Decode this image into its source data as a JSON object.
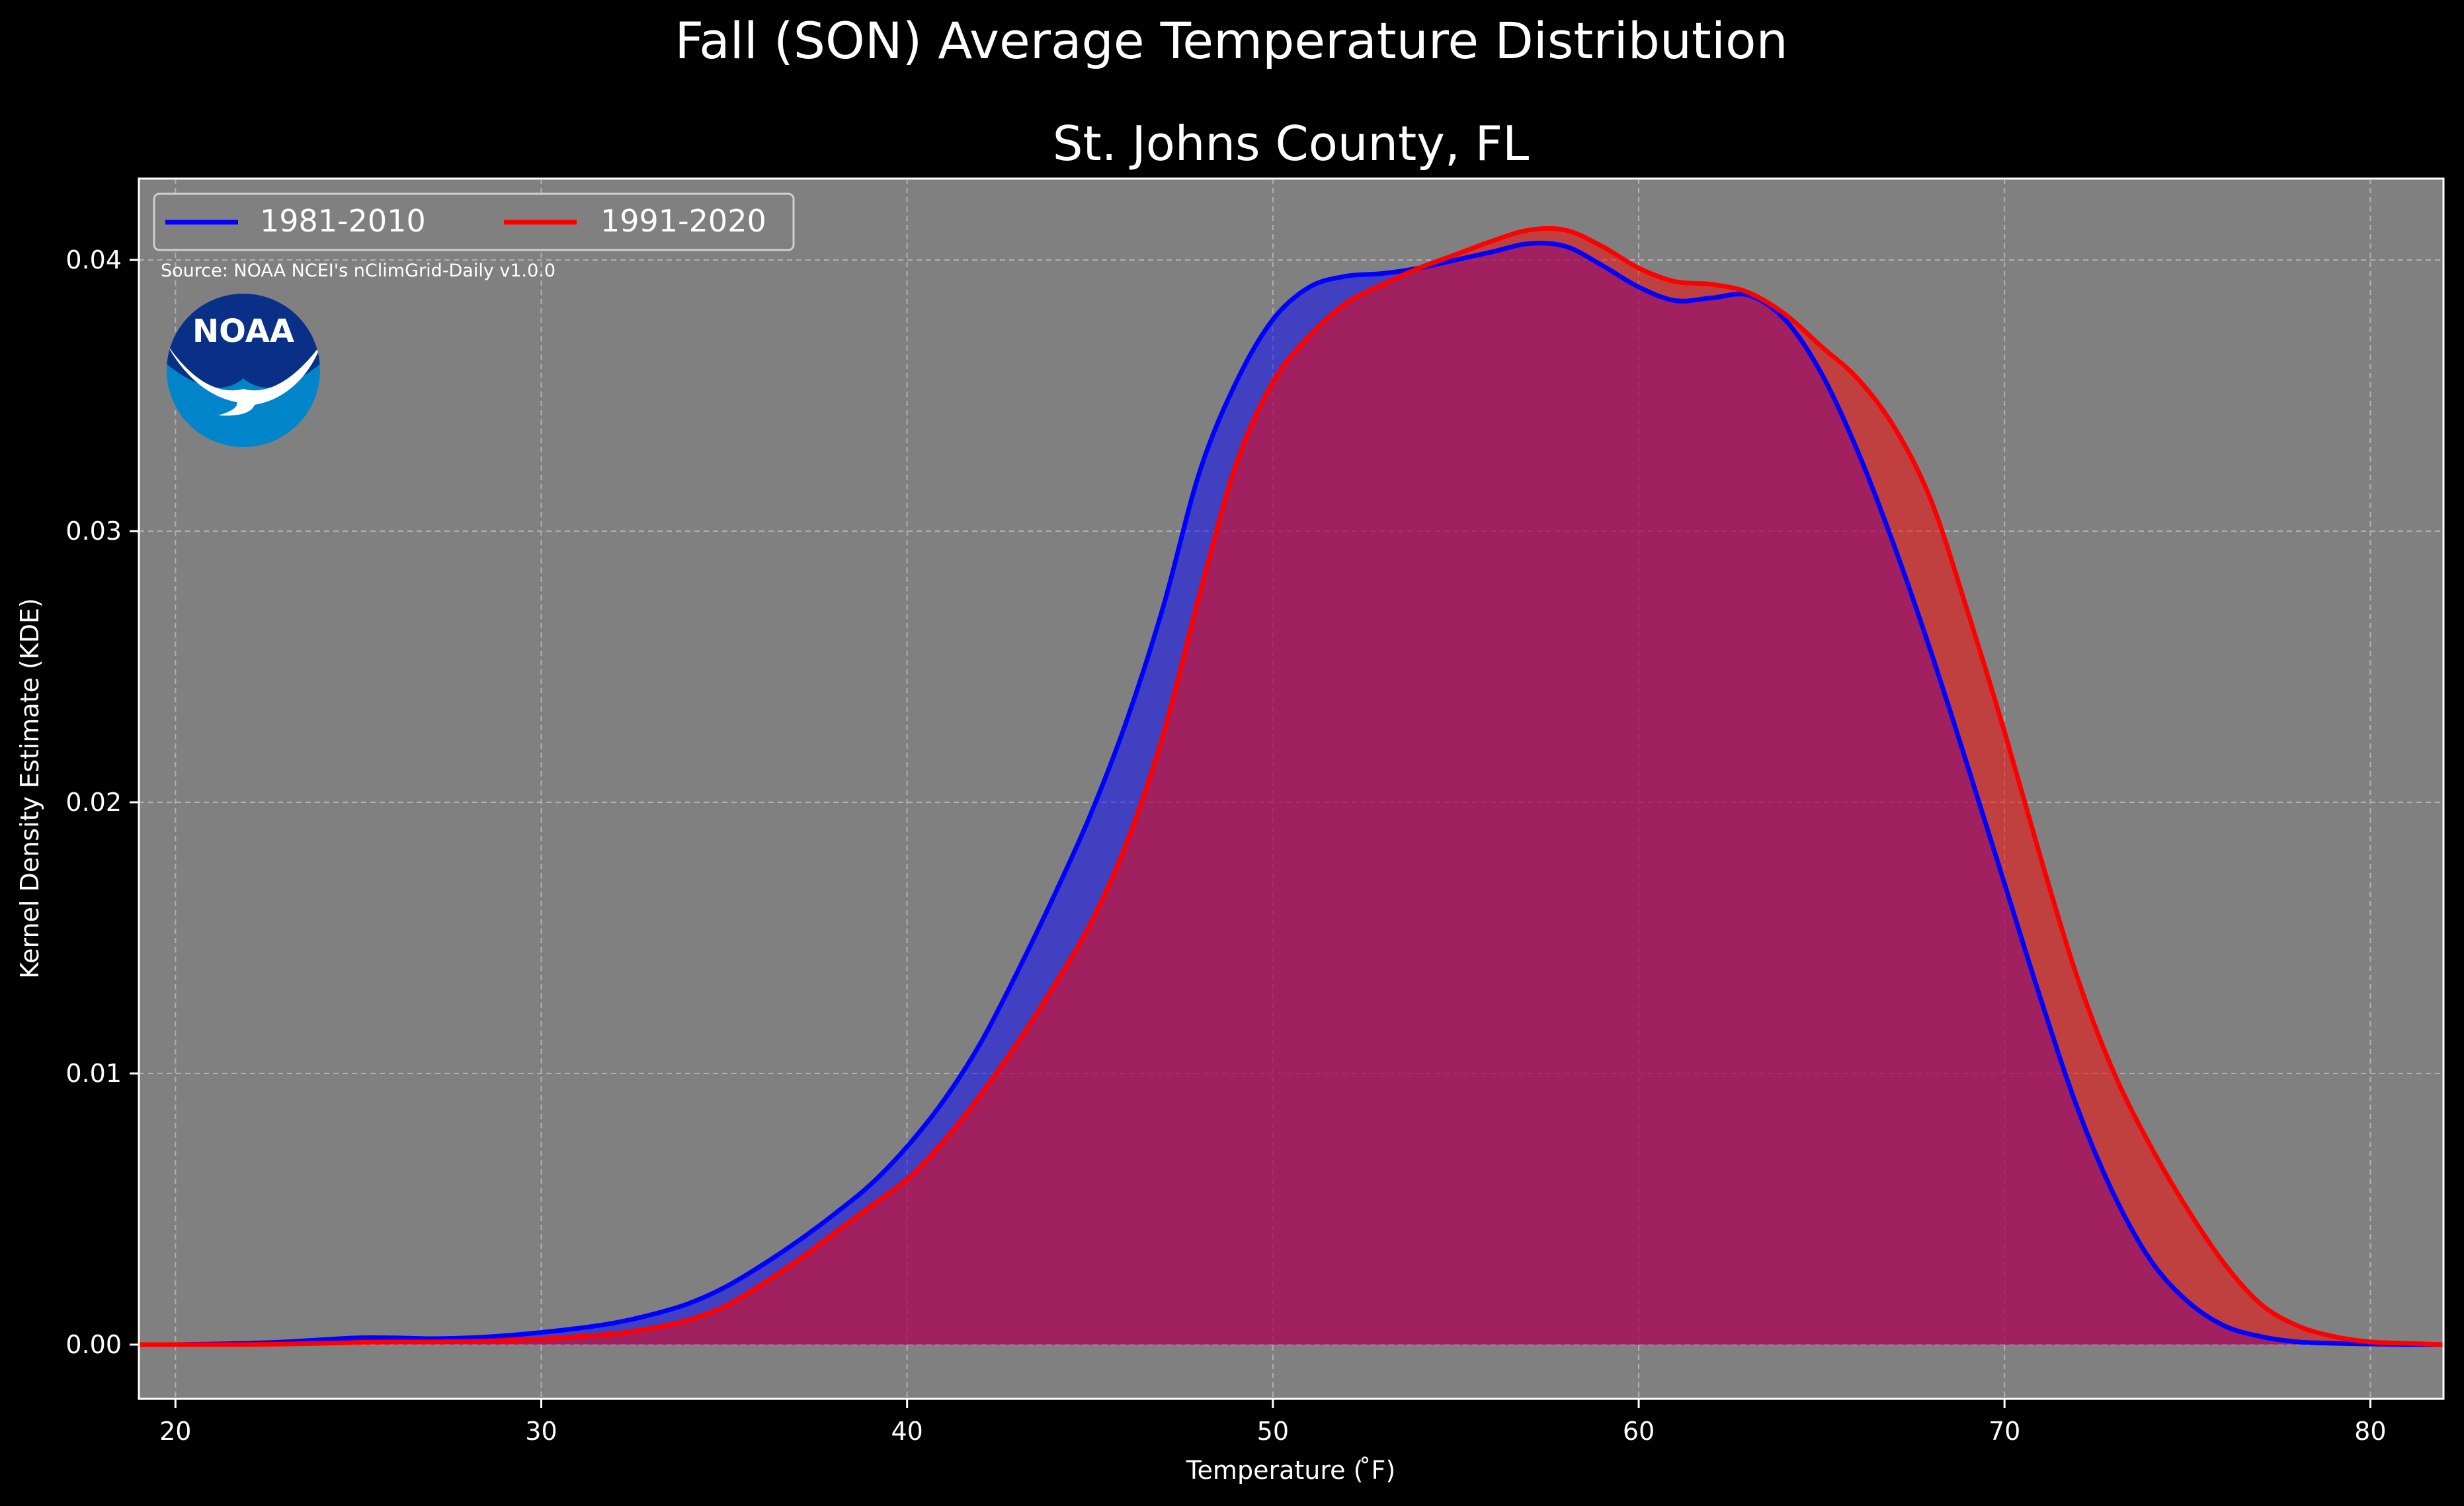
{
  "figure": {
    "suptitle": "Fall (SON) Average Temperature Distribution",
    "background": "#000000",
    "axes_background": "#808080"
  },
  "source_note": "Source: NOAA NCEI's nClimGrid-Daily v1.0.0",
  "logo": {
    "text": "NOAA",
    "colors": {
      "top": "#0a2f87",
      "bottom": "#0085ca",
      "bird": "#ffffff"
    }
  },
  "chart_data": {
    "type": "area",
    "title": "St. Johns County, FL",
    "xlabel": "Temperature ($^\\circ$F)",
    "xlabel_display": "Temperature ( ̊F)",
    "ylabel": "Kernel Density Estimate (KDE)",
    "xlim": [
      19,
      82
    ],
    "ylim": [
      -0.002,
      0.043
    ],
    "xticks": [
      20,
      30,
      40,
      50,
      60,
      70,
      80
    ],
    "xtick_labels": [
      "20",
      "30",
      "40",
      "50",
      "60",
      "70",
      "80"
    ],
    "yticks": [
      0.0,
      0.01,
      0.02,
      0.03,
      0.04
    ],
    "ytick_labels": [
      "0.00",
      "0.01",
      "0.02",
      "0.03",
      "0.04"
    ],
    "grid": true,
    "legend": {
      "placement": "upper-left",
      "columns": 2
    },
    "x": [
      19,
      20,
      21,
      22,
      23,
      24,
      25,
      26,
      27,
      28,
      29,
      30,
      31,
      32,
      33,
      34,
      35,
      36,
      37,
      38,
      39,
      40,
      41,
      42,
      43,
      44,
      45,
      46,
      47,
      48,
      49,
      50,
      51,
      52,
      53,
      54,
      55,
      56,
      57,
      58,
      59,
      60,
      61,
      62,
      63,
      64,
      65,
      66,
      67,
      68,
      69,
      70,
      71,
      72,
      73,
      74,
      75,
      76,
      77,
      78,
      79,
      80,
      81,
      82
    ],
    "series": [
      {
        "name": "1981-2010",
        "color": "#0000ff",
        "fill": "#0000ff",
        "values": [
          0.0,
          0.0,
          2e-05,
          5e-05,
          0.0001,
          0.00018,
          0.00025,
          0.00025,
          0.00022,
          0.00025,
          0.00033,
          0.00045,
          0.0006,
          0.0008,
          0.0011,
          0.0015,
          0.0021,
          0.0029,
          0.0038,
          0.0048,
          0.0059,
          0.0073,
          0.009,
          0.0111,
          0.0137,
          0.0165,
          0.0195,
          0.023,
          0.0272,
          0.0322,
          0.0355,
          0.0378,
          0.039,
          0.0394,
          0.0395,
          0.0397,
          0.04,
          0.0403,
          0.0406,
          0.0405,
          0.0398,
          0.039,
          0.0385,
          0.0386,
          0.0387,
          0.0378,
          0.0358,
          0.0329,
          0.0294,
          0.0255,
          0.0213,
          0.017,
          0.0127,
          0.0087,
          0.0055,
          0.0031,
          0.0016,
          0.0007,
          0.0003,
          0.0001,
          5e-05,
          2e-05,
          0.0,
          0.0
        ]
      },
      {
        "name": "1991-2020",
        "color": "#ff0000",
        "fill": "#ff0000",
        "values": [
          0.0,
          0.0,
          0.0,
          0.0,
          2e-05,
          5e-05,
          8e-05,
          0.0001,
          0.0001,
          0.00012,
          0.00015,
          0.0002,
          0.0003,
          0.0004,
          0.0006,
          0.0009,
          0.0014,
          0.0022,
          0.0031,
          0.0041,
          0.0051,
          0.0061,
          0.0075,
          0.0092,
          0.0111,
          0.0132,
          0.0155,
          0.0185,
          0.0225,
          0.0277,
          0.0325,
          0.0355,
          0.0372,
          0.0384,
          0.0391,
          0.0397,
          0.0402,
          0.0407,
          0.0411,
          0.0411,
          0.0405,
          0.0397,
          0.0392,
          0.0391,
          0.0388,
          0.038,
          0.0368,
          0.0356,
          0.0338,
          0.0311,
          0.027,
          0.0226,
          0.0179,
          0.0135,
          0.01,
          0.0073,
          0.005,
          0.003,
          0.0015,
          0.0007,
          0.0003,
          0.0001,
          5e-05,
          0.0
        ]
      }
    ]
  }
}
